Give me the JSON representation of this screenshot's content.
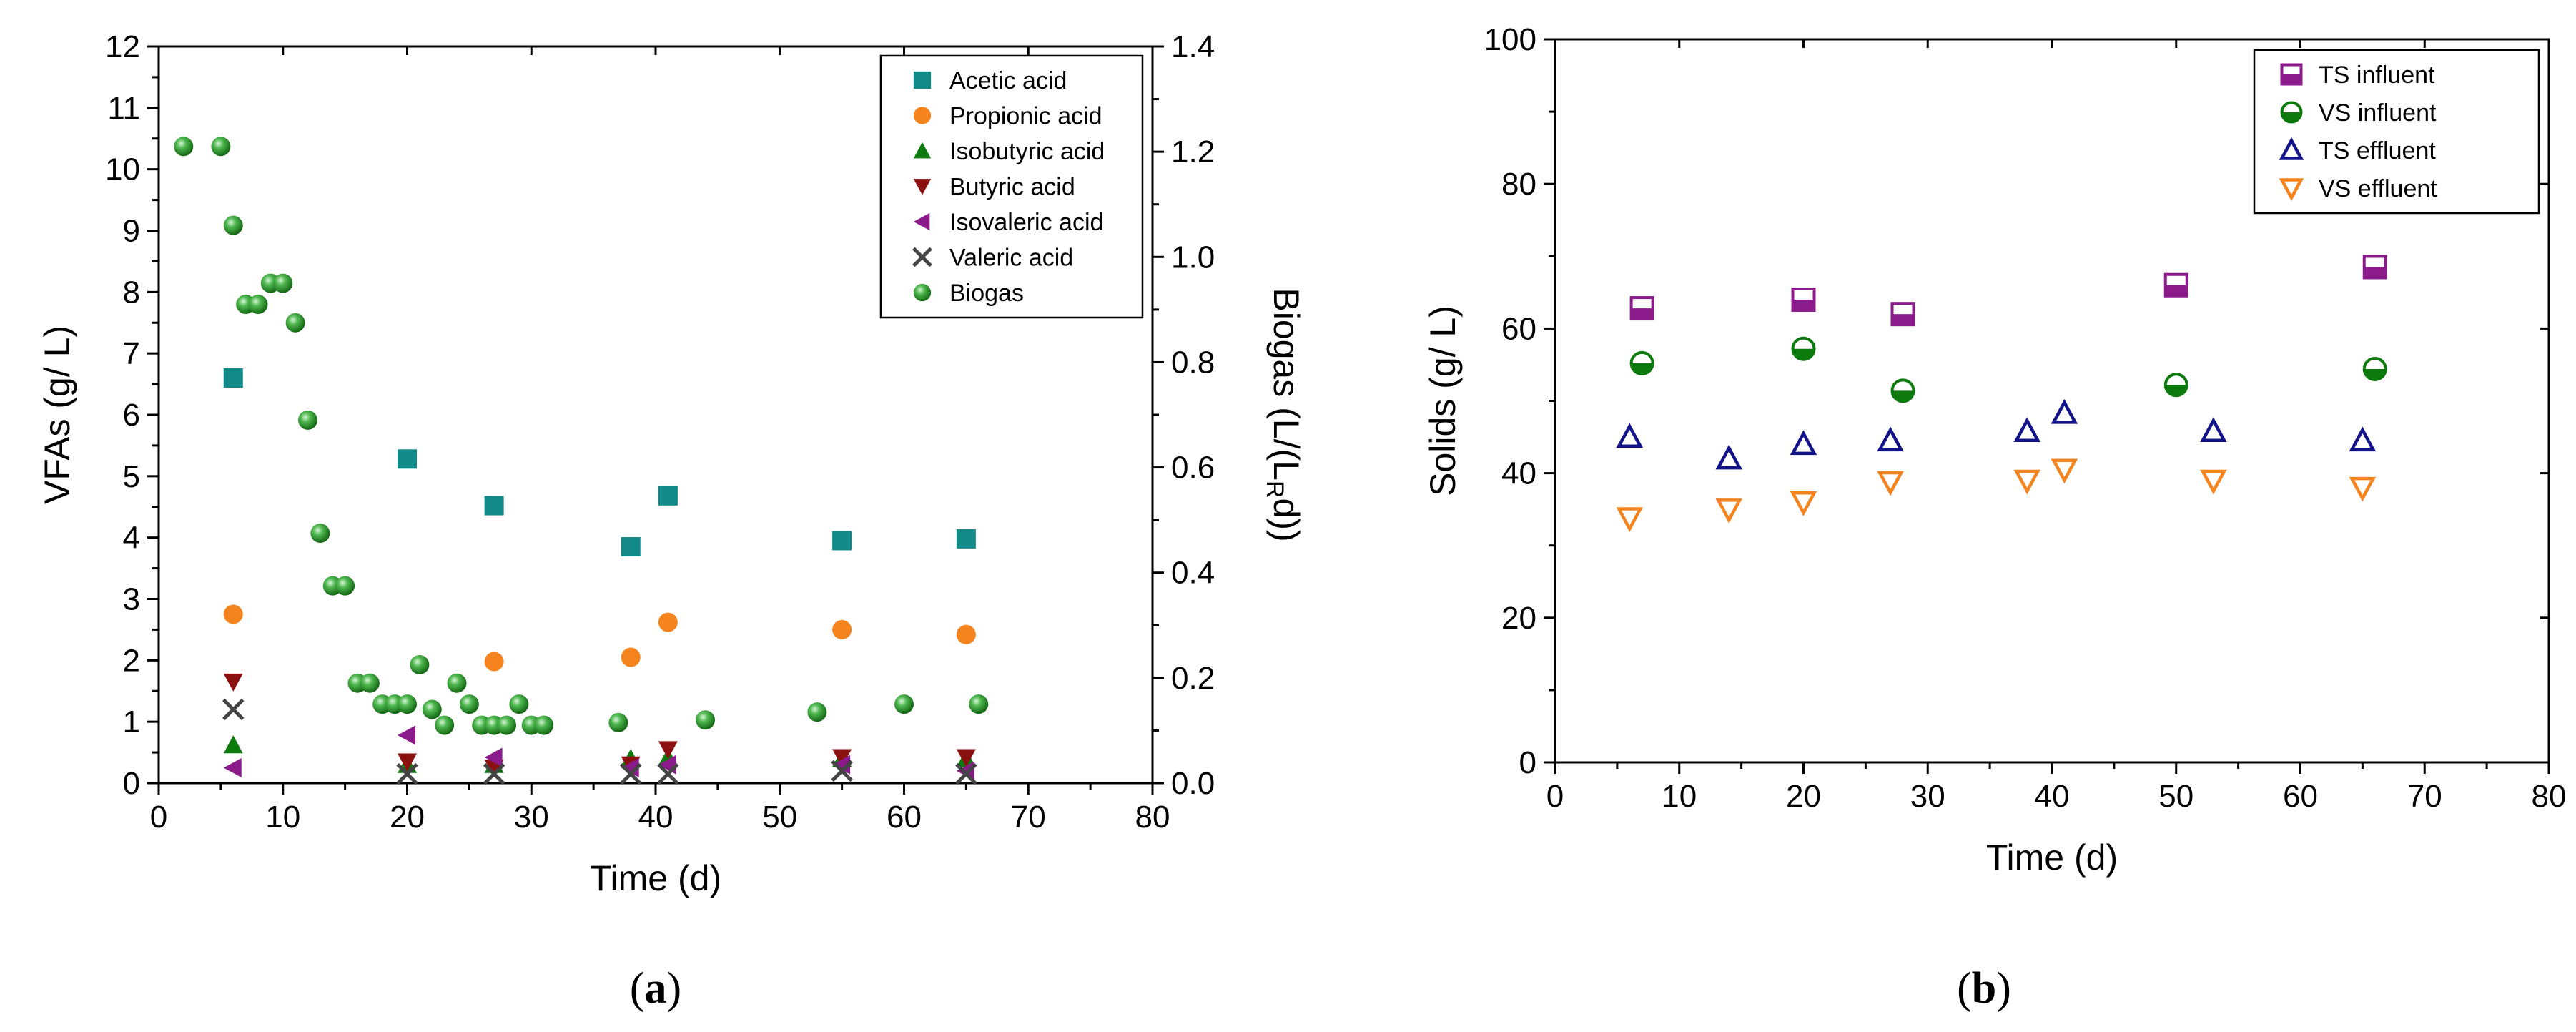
{
  "chart_data": [
    {
      "id": "a",
      "type": "scatter",
      "caption_letter": "a",
      "caption_open": "(",
      "caption_close": ")",
      "xlabel": "Time (d)",
      "ylabel": "VFAs (g/ L)",
      "y2label": "Biogas (L/(L",
      "y2label_sub": "R",
      "y2label_tail": "d))",
      "xlim": [
        0,
        80
      ],
      "ylim": [
        0,
        12
      ],
      "y2lim": [
        0,
        1.4
      ],
      "xticks": [
        "0",
        "10",
        "20",
        "30",
        "40",
        "50",
        "60",
        "70",
        "80"
      ],
      "yticks": [
        "0",
        "1",
        "2",
        "3",
        "4",
        "5",
        "6",
        "7",
        "8",
        "9",
        "10",
        "11",
        "12"
      ],
      "y2ticks": [
        "0.0",
        "0.2",
        "0.4",
        "0.6",
        "0.8",
        "1.0",
        "1.2",
        "1.4"
      ],
      "legend_position": "top-right",
      "series": [
        {
          "name": "Acetic acid",
          "marker": "square",
          "color": "#138a8a",
          "axis": "left",
          "x": [
            6,
            20,
            27,
            38,
            41,
            55,
            65
          ],
          "y": [
            6.6,
            5.28,
            4.52,
            3.85,
            4.68,
            3.95,
            3.98
          ]
        },
        {
          "name": "Propionic acid",
          "marker": "circle",
          "color": "#f5841f",
          "axis": "left",
          "x": [
            6,
            27,
            38,
            41,
            55,
            65
          ],
          "y": [
            2.75,
            1.98,
            2.05,
            2.62,
            2.5,
            2.42
          ]
        },
        {
          "name": "Isobutyric acid",
          "marker": "triangle-up",
          "color": "#0c7a0c",
          "axis": "left",
          "x": [
            6,
            20,
            27,
            38,
            41,
            55,
            65
          ],
          "y": [
            0.62,
            0.3,
            0.3,
            0.4,
            0.42,
            0.4,
            0.4
          ]
        },
        {
          "name": "Butyric acid",
          "marker": "triangle-down",
          "color": "#8b1010",
          "axis": "left",
          "x": [
            6,
            20,
            27,
            38,
            41,
            55,
            65
          ],
          "y": [
            1.65,
            0.35,
            0.25,
            0.3,
            0.55,
            0.42,
            0.42
          ]
        },
        {
          "name": "Isovaleric acid",
          "marker": "triangle-left",
          "color": "#8b1a8b",
          "axis": "left",
          "x": [
            6,
            20,
            27,
            38,
            41,
            55,
            65
          ],
          "y": [
            0.25,
            0.78,
            0.42,
            0.25,
            0.3,
            0.3,
            0.2
          ]
        },
        {
          "name": "Valeric acid",
          "marker": "x",
          "color": "#444444",
          "axis": "left",
          "x": [
            6,
            20,
            27,
            38,
            41,
            55,
            65
          ],
          "y": [
            1.2,
            0.15,
            0.15,
            0.15,
            0.15,
            0.2,
            0.15
          ]
        },
        {
          "name": "Biogas",
          "marker": "sphere",
          "color": "#1e8c1e",
          "axis": "right",
          "x": [
            2,
            5,
            6,
            7,
            8,
            9,
            10,
            11,
            12,
            13,
            14,
            15,
            16,
            17,
            18,
            19,
            20,
            21,
            22,
            23,
            24,
            25,
            26,
            27,
            28,
            29,
            30,
            31,
            37,
            44,
            53,
            60,
            66
          ],
          "y": [
            1.21,
            1.21,
            1.06,
            0.91,
            0.91,
            0.95,
            0.95,
            0.875,
            0.69,
            0.475,
            0.375,
            0.375,
            0.19,
            0.19,
            0.15,
            0.15,
            0.15,
            0.225,
            0.14,
            0.11,
            0.19,
            0.15,
            0.11,
            0.11,
            0.11,
            0.15,
            0.11,
            0.11,
            0.115,
            0.12,
            0.135,
            0.15,
            0.15
          ]
        }
      ]
    },
    {
      "id": "b",
      "type": "scatter",
      "caption_letter": "b",
      "caption_open": "(",
      "caption_close": ")",
      "xlabel": "Time (d)",
      "ylabel": "Solids (g/ L)",
      "xlim": [
        0,
        80
      ],
      "ylim": [
        0,
        100
      ],
      "xticks": [
        "0",
        "10",
        "20",
        "30",
        "40",
        "50",
        "60",
        "70",
        "80"
      ],
      "yticks": [
        "0",
        "20",
        "40",
        "60",
        "80",
        "100"
      ],
      "legend_position": "top-right",
      "series": [
        {
          "name": "TS influent",
          "marker": "half-square",
          "color": "#8b1a8b",
          "x": [
            7,
            20,
            28,
            50,
            66
          ],
          "y": [
            62.8,
            64.0,
            62.0,
            66.0,
            68.5
          ]
        },
        {
          "name": "VS influent",
          "marker": "half-circle",
          "color": "#0c7a0c",
          "x": [
            7,
            20,
            28,
            50,
            66
          ],
          "y": [
            55.2,
            57.2,
            51.4,
            52.2,
            54.4
          ]
        },
        {
          "name": "TS effluent",
          "marker": "triangle-up-open",
          "color": "#14148a",
          "x": [
            6,
            14,
            20,
            27,
            38,
            41,
            53,
            65
          ],
          "y": [
            45.0,
            42.0,
            44.0,
            44.5,
            45.8,
            48.3,
            45.8,
            44.5
          ]
        },
        {
          "name": "VS effluent",
          "marker": "triangle-down-open",
          "color": "#f5841f",
          "x": [
            6,
            14,
            20,
            27,
            38,
            41,
            53,
            65
          ],
          "y": [
            33.8,
            35.0,
            36.0,
            38.8,
            39.0,
            40.5,
            39.0,
            38.0
          ]
        }
      ]
    }
  ]
}
